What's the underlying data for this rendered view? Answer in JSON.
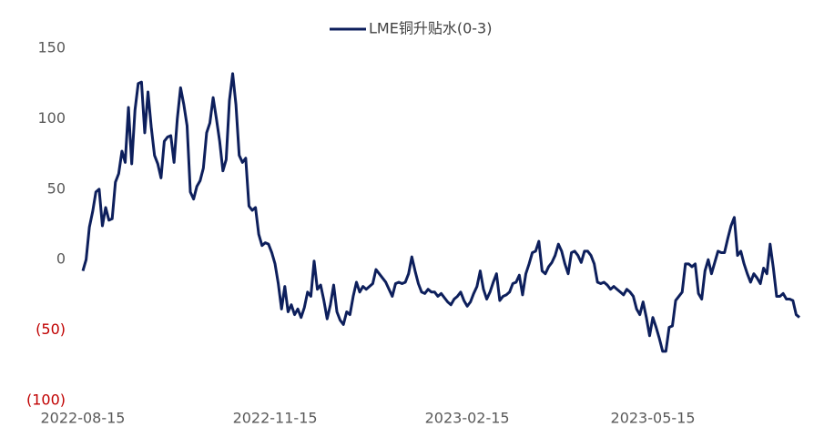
{
  "chart_data": {
    "type": "line",
    "categories": [
      "2022-08-15",
      null,
      null,
      null,
      null,
      null,
      null,
      null,
      null,
      null,
      null,
      null,
      null,
      null,
      null,
      null,
      null,
      null,
      null,
      null,
      null,
      null,
      null,
      null,
      null,
      null,
      null,
      null,
      null,
      null,
      null,
      null,
      null,
      null,
      null,
      null,
      null,
      null,
      null,
      null,
      null,
      null,
      null,
      null,
      null,
      null,
      null,
      null,
      null,
      null,
      null,
      null,
      null,
      null,
      null,
      null,
      null,
      null,
      null,
      "2022-11-15",
      null,
      null,
      null,
      null,
      null,
      null,
      null,
      null,
      null,
      null,
      null,
      null,
      null,
      null,
      null,
      null,
      null,
      null,
      null,
      null,
      null,
      null,
      null,
      null,
      null,
      null,
      null,
      null,
      null,
      null,
      null,
      null,
      null,
      null,
      null,
      null,
      null,
      null,
      null,
      null,
      null,
      null,
      null,
      null,
      null,
      null,
      null,
      null,
      null,
      null,
      null,
      null,
      null,
      null,
      null,
      null,
      null,
      null,
      "2023-02-15",
      null,
      null,
      null,
      null,
      null,
      null,
      null,
      null,
      null,
      null,
      null,
      null,
      null,
      null,
      null,
      null,
      null,
      null,
      null,
      null,
      null,
      null,
      null,
      null,
      null,
      null,
      null,
      null,
      null,
      null,
      null,
      null,
      null,
      null,
      null,
      null,
      null,
      null,
      null,
      null,
      null,
      null,
      null,
      null,
      null,
      null,
      null,
      null,
      null,
      null,
      null,
      null,
      null,
      null,
      null,
      null,
      "2023-05-15",
      null,
      null,
      null,
      null,
      null,
      null,
      null,
      null,
      null,
      null,
      null,
      null,
      null,
      null,
      null,
      null,
      null,
      null,
      null,
      null,
      null,
      null,
      null,
      null,
      null,
      null,
      null,
      null,
      null,
      null,
      null,
      null,
      null,
      null,
      null,
      null,
      null,
      null,
      null,
      null,
      null,
      null,
      null,
      null,
      null
    ],
    "series": [
      {
        "name": "LME铜升贴水(0-3)",
        "color": "#0d1f5c",
        "values": [
          -8,
          0,
          23,
          34,
          48,
          50,
          24,
          37,
          28,
          29,
          55,
          61,
          77,
          69,
          108,
          68,
          106,
          125,
          126,
          90,
          119,
          94,
          74,
          68,
          58,
          84,
          87,
          88,
          69,
          100,
          122,
          110,
          95,
          48,
          43,
          52,
          56,
          65,
          90,
          97,
          115,
          100,
          84,
          63,
          71,
          113,
          132,
          110,
          74,
          69,
          72,
          38,
          35,
          37,
          18,
          10,
          12,
          11,
          5,
          -3,
          -17,
          -35,
          -19,
          -37,
          -32,
          -39,
          -35,
          -41,
          -34,
          -23,
          -26,
          -1,
          -21,
          -18,
          -29,
          -42,
          -32,
          -18,
          -37,
          -43,
          -46,
          -37,
          -39,
          -26,
          -16,
          -23,
          -19,
          -21,
          -19,
          -17,
          -7,
          -10,
          -13,
          -16,
          -21,
          -26,
          -17,
          -16,
          -17,
          -16,
          -10,
          2,
          -8,
          -17,
          -23,
          -24,
          -21,
          -23,
          -23,
          -26,
          -24,
          -27,
          -30,
          -32,
          -28,
          -26,
          -23,
          -29,
          -33,
          -30,
          -24,
          -19,
          -8,
          -21,
          -28,
          -23,
          -16,
          -10,
          -29,
          -26,
          -25,
          -23,
          -17,
          -16,
          -11,
          -25,
          -10,
          -3,
          5,
          6,
          13,
          -8,
          -10,
          -5,
          -2,
          3,
          11,
          6,
          -3,
          -10,
          5,
          6,
          3,
          -2,
          6,
          6,
          3,
          -3,
          -16,
          -17,
          -16,
          -18,
          -21,
          -19,
          -21,
          -23,
          -25,
          -21,
          -23,
          -26,
          -35,
          -39,
          -30,
          -41,
          -54,
          -41,
          -48,
          -56,
          -65,
          -65,
          -48,
          -47,
          -29,
          -26,
          -23,
          -3,
          -3,
          -5,
          -3,
          -24,
          -28,
          -8,
          0,
          -10,
          -2,
          6,
          5,
          5,
          15,
          24,
          30,
          3,
          6,
          -3,
          -10,
          -16,
          -10,
          -13,
          -17,
          -6,
          -10,
          11,
          -6,
          -26,
          -26,
          -24,
          -28,
          -28,
          -29,
          -39,
          -41
        ]
      }
    ],
    "ylim": [
      -100,
      150
    ],
    "yticks": [
      {
        "value": -100,
        "label": "(100)"
      },
      {
        "value": -50,
        "label": "(50)"
      },
      0,
      50,
      100,
      150
    ],
    "negative_label_color": "#c00000",
    "grid": false,
    "legend": "top"
  }
}
